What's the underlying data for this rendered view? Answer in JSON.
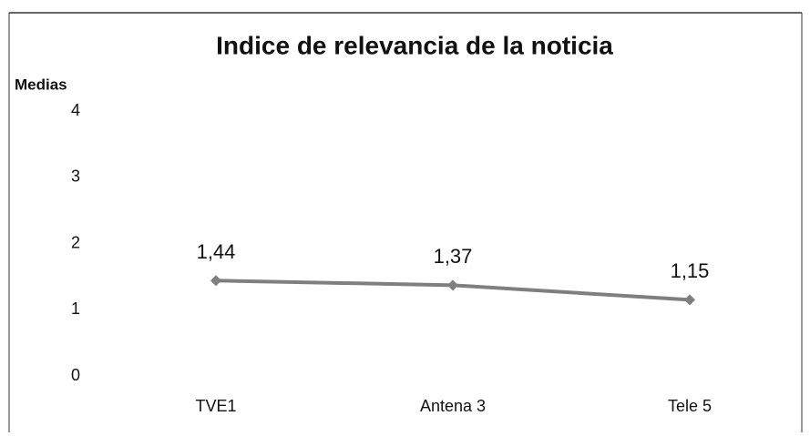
{
  "chart_data": {
    "type": "line",
    "title": "Indice de relevancia de la noticia",
    "y_label": "Medias",
    "categories": [
      "TVE1",
      "Antena 3",
      "Tele 5"
    ],
    "series": [
      {
        "name": "Medias",
        "color": "#7f7f7f",
        "values": [
          1.44,
          1.37,
          1.15
        ],
        "value_labels": [
          "1,44",
          "1,37",
          "1,15"
        ]
      }
    ],
    "ylim": [
      0,
      4
    ],
    "yticks": [
      0,
      1,
      2,
      3,
      4
    ],
    "grid": false,
    "legend": false
  }
}
